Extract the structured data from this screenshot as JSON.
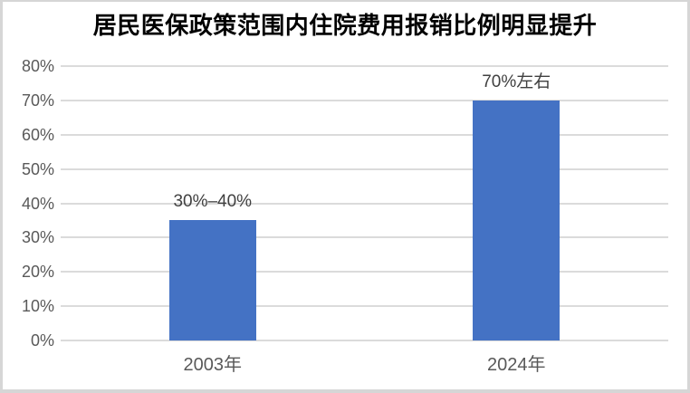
{
  "chart_data": {
    "type": "bar",
    "title": "居民医保政策范围内住院费用报销比例明显提升",
    "categories": [
      "2003年",
      "2024年"
    ],
    "values": [
      35,
      70
    ],
    "bar_labels": [
      "30%–40%",
      "70%左右"
    ],
    "ylabel": "",
    "xlabel": "",
    "ylim": [
      0,
      80
    ],
    "ytick_step": 10,
    "yticks": [
      "0%",
      "10%",
      "20%",
      "30%",
      "40%",
      "50%",
      "60%",
      "70%",
      "80%"
    ],
    "grid": true,
    "legend": false,
    "colors": {
      "bar": "#4472C4",
      "gridline": "#DBDBDB",
      "axis_text": "#595959",
      "bar_label_text": "#404040",
      "title_text": "#000000",
      "frame_border": "#D6D6D6",
      "background": "#FFFFFF"
    }
  }
}
